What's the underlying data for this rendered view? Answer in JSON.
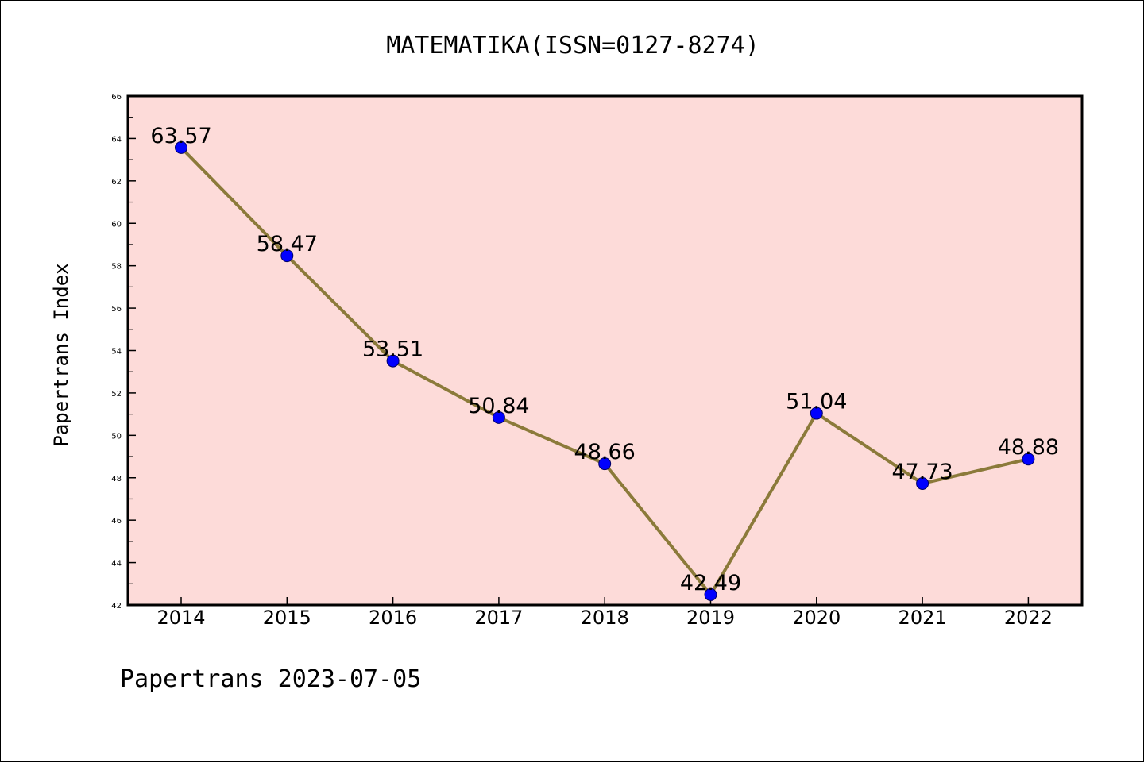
{
  "chart_data": {
    "type": "line",
    "title": "MATEMATIKA(ISSN=0127-8274)",
    "ylabel": "Papertrans Index",
    "xlabel": "",
    "footer": "Papertrans 2023-07-05",
    "categories": [
      "2014",
      "2015",
      "2016",
      "2017",
      "2018",
      "2019",
      "2020",
      "2021",
      "2022"
    ],
    "series": [
      {
        "values": [
          63.57,
          58.47,
          53.51,
          50.84,
          48.66,
          42.49,
          51.04,
          47.73,
          48.88
        ],
        "labels": [
          "63.57",
          "58.47",
          "53.51",
          "50.84",
          "48.66",
          "42.49",
          "51.04",
          "47.73",
          "48.88"
        ]
      }
    ],
    "ylim": [
      42,
      66
    ],
    "yticks": [
      42,
      44,
      46,
      48,
      50,
      52,
      54,
      56,
      58,
      60,
      62,
      64,
      66
    ],
    "grid": false,
    "colors": {
      "plot_background": "#fddbd9",
      "line": "#8b7a3a",
      "marker": "#0000ff",
      "axes": "#000000"
    }
  }
}
